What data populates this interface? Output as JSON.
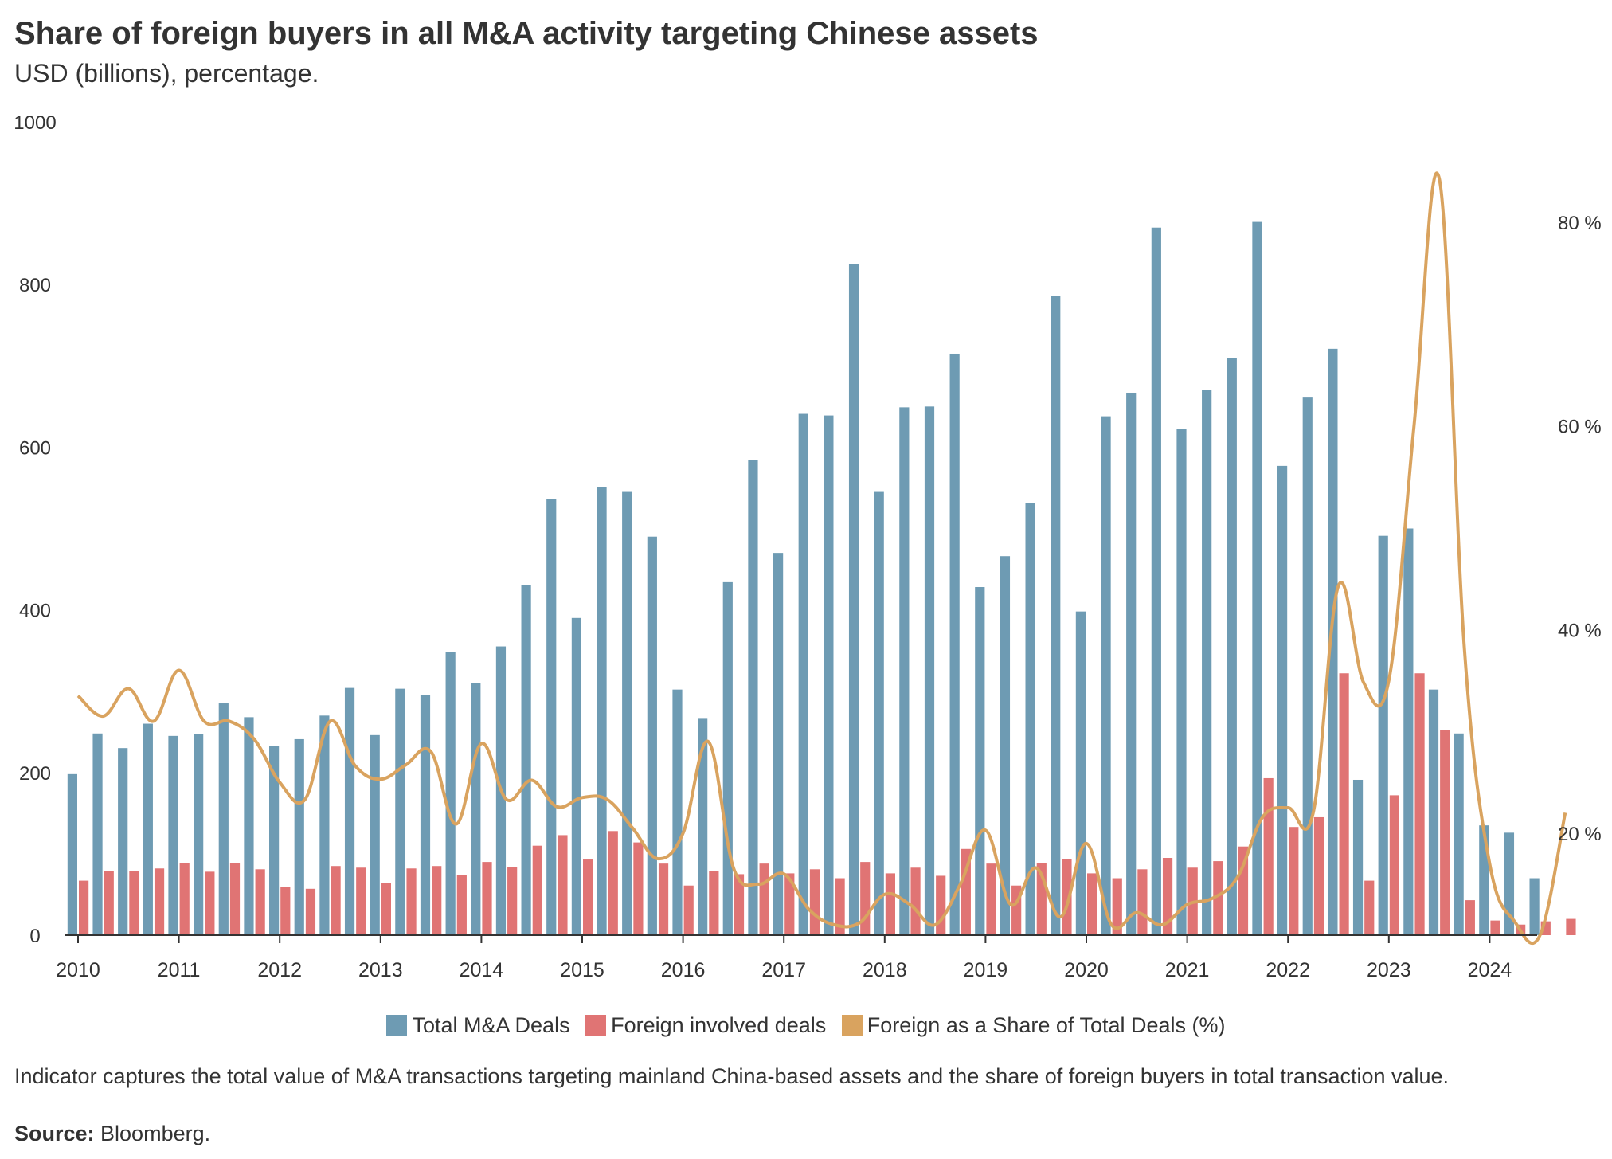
{
  "chart_data": {
    "type": "bar",
    "title": "Share of foreign buyers in all M&A activity targeting Chinese assets",
    "subtitle": "USD (billions), percentage.",
    "y_left": {
      "min": 0,
      "max": 1000,
      "ticks": [
        "0",
        "200",
        "400",
        "600",
        "800",
        "1000"
      ]
    },
    "y_right": {
      "min": 10,
      "max": 90,
      "ticks": [
        "20 %",
        "40 %",
        "60 %",
        "80 %"
      ],
      "tick_values": [
        20,
        40,
        60,
        80
      ]
    },
    "x_labels": [
      "2010",
      "2011",
      "2012",
      "2013",
      "2014",
      "2015",
      "2016",
      "2017",
      "2018",
      "2019",
      "2020",
      "2021",
      "2022",
      "2023",
      "2024"
    ],
    "quarters_per_year": 4,
    "series": [
      {
        "name": "Total M&A Deals",
        "type": "bar",
        "axis": "left",
        "color": "#6e9bb3",
        "values": [
          198,
          248,
          230,
          260,
          245,
          247,
          285,
          268,
          233,
          241,
          270,
          304,
          246,
          303,
          295,
          348,
          310,
          355,
          430,
          536,
          390,
          551,
          545,
          490,
          302,
          267,
          434,
          584,
          470,
          641,
          639,
          825,
          545,
          649,
          650,
          715,
          428,
          466,
          531,
          786,
          398,
          638,
          667,
          870,
          622,
          670,
          710,
          877,
          577,
          661,
          721,
          191,
          491,
          500,
          302,
          248,
          135,
          126,
          70,
          null
        ]
      },
      {
        "name": "Foreign involved deals",
        "type": "bar",
        "axis": "left",
        "color": "#e07474",
        "values": [
          67,
          79,
          79,
          82,
          89,
          78,
          89,
          81,
          59,
          57,
          85,
          83,
          64,
          82,
          85,
          74,
          90,
          84,
          110,
          123,
          93,
          128,
          114,
          88,
          61,
          79,
          75,
          88,
          76,
          81,
          70,
          90,
          76,
          83,
          73,
          106,
          88,
          61,
          89,
          94,
          76,
          70,
          81,
          95,
          83,
          91,
          109,
          193,
          133,
          145,
          322,
          67,
          172,
          322,
          252,
          43,
          18,
          13,
          17,
          20
        ]
      },
      {
        "name": "Foreign as a Share of Total Deals (%)",
        "type": "line",
        "axis": "right",
        "color": "#d9a35f",
        "values": [
          33.5,
          31.5,
          34.2,
          31.0,
          36.0,
          31.0,
          31.0,
          29.2,
          25.0,
          23.3,
          31.0,
          26.6,
          25.3,
          26.7,
          28.0,
          20.9,
          28.8,
          23.3,
          25.2,
          22.6,
          23.5,
          23.3,
          20.5,
          17.5,
          20.0,
          29.0,
          16.6,
          15.0,
          16.0,
          12.5,
          11.0,
          11.2,
          14.0,
          13.0,
          11.0,
          15.0,
          20.3,
          13.0,
          16.6,
          11.8,
          19.0,
          11.0,
          12.2,
          11.0,
          13.0,
          13.6,
          15.7,
          21.6,
          22.5,
          22.0,
          44.3,
          34.8,
          35.0,
          60.0,
          84.3,
          38.0,
          17.0,
          11.3,
          10.0,
          22.0
        ]
      }
    ],
    "legend_position": "bottom-center"
  },
  "footer": {
    "note": "Indicator captures the total value of M&A transactions targeting mainland China-based assets and the share of foreign buyers in total transaction value.",
    "source_label": "Source:",
    "source_text": " Bloomberg."
  }
}
